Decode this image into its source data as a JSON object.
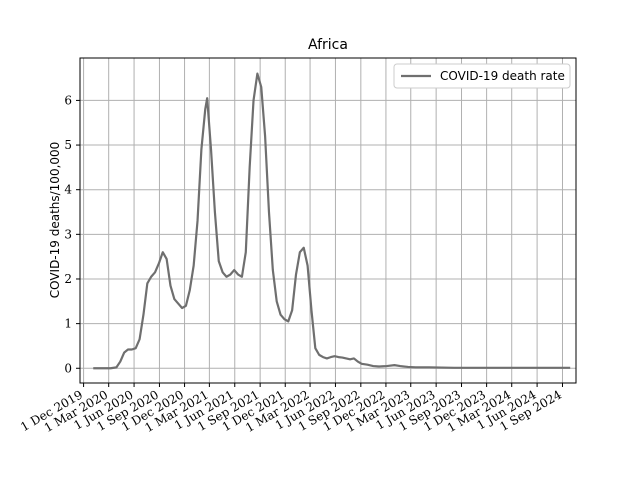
{
  "chart_data": {
    "type": "line",
    "title": "Africa",
    "xlabel": "",
    "ylabel": "COVID-19 deaths/100,000",
    "legend": {
      "placement": "top-right",
      "entries": [
        "COVID-19 death rate"
      ]
    },
    "grid": true,
    "xlim": [
      "2019-11-18",
      "2024-10-20"
    ],
    "ylim": [
      -0.33,
      6.95
    ],
    "x_tick_labels": [
      "1 Dec 2019",
      "1 Mar 2020",
      "1 Jun 2020",
      "1 Sep 2020",
      "1 Dec 2020",
      "1 Mar 2021",
      "1 Jun 2021",
      "1 Sep 2021",
      "1 Dec 2021",
      "1 Mar 2022",
      "1 Jun 2022",
      "1 Sep 2022",
      "1 Dec 2022",
      "1 Mar 2023",
      "1 Jun 2023",
      "1 Sep 2023",
      "1 Dec 2023",
      "1 Mar 2024",
      "1 Jun 2024",
      "1 Sep 2024"
    ],
    "x_tick_dates": [
      "2019-12-01",
      "2020-03-01",
      "2020-06-01",
      "2020-09-01",
      "2020-12-01",
      "2021-03-01",
      "2021-06-01",
      "2021-09-01",
      "2021-12-01",
      "2022-03-01",
      "2022-06-01",
      "2022-09-01",
      "2022-12-01",
      "2023-03-01",
      "2023-06-01",
      "2023-09-01",
      "2023-12-01",
      "2024-03-01",
      "2024-06-01",
      "2024-09-01"
    ],
    "y_ticks": [
      0,
      1,
      2,
      3,
      4,
      5,
      6
    ],
    "series": [
      {
        "name": "COVID-19 death rate",
        "color": "#6f6f6f",
        "points": [
          [
            "2020-01-05",
            0.0
          ],
          [
            "2020-03-08",
            0.0
          ],
          [
            "2020-03-29",
            0.02
          ],
          [
            "2020-04-12",
            0.15
          ],
          [
            "2020-04-26",
            0.35
          ],
          [
            "2020-05-10",
            0.42
          ],
          [
            "2020-05-24",
            0.42
          ],
          [
            "2020-06-07",
            0.45
          ],
          [
            "2020-06-21",
            0.65
          ],
          [
            "2020-07-05",
            1.2
          ],
          [
            "2020-07-19",
            1.9
          ],
          [
            "2020-08-02",
            2.05
          ],
          [
            "2020-08-16",
            2.15
          ],
          [
            "2020-08-30",
            2.35
          ],
          [
            "2020-09-13",
            2.6
          ],
          [
            "2020-09-27",
            2.45
          ],
          [
            "2020-10-11",
            1.85
          ],
          [
            "2020-10-25",
            1.55
          ],
          [
            "2020-11-08",
            1.45
          ],
          [
            "2020-11-22",
            1.35
          ],
          [
            "2020-12-06",
            1.4
          ],
          [
            "2020-12-20",
            1.75
          ],
          [
            "2021-01-03",
            2.3
          ],
          [
            "2021-01-17",
            3.3
          ],
          [
            "2021-01-31",
            4.9
          ],
          [
            "2021-02-14",
            5.8
          ],
          [
            "2021-02-21",
            6.05
          ],
          [
            "2021-03-07",
            4.9
          ],
          [
            "2021-03-21",
            3.5
          ],
          [
            "2021-04-04",
            2.4
          ],
          [
            "2021-04-18",
            2.15
          ],
          [
            "2021-05-02",
            2.05
          ],
          [
            "2021-05-16",
            2.1
          ],
          [
            "2021-05-30",
            2.2
          ],
          [
            "2021-06-13",
            2.1
          ],
          [
            "2021-06-27",
            2.05
          ],
          [
            "2021-07-11",
            2.6
          ],
          [
            "2021-07-25",
            4.5
          ],
          [
            "2021-08-08",
            6.0
          ],
          [
            "2021-08-22",
            6.6
          ],
          [
            "2021-09-05",
            6.3
          ],
          [
            "2021-09-19",
            5.2
          ],
          [
            "2021-10-03",
            3.5
          ],
          [
            "2021-10-17",
            2.2
          ],
          [
            "2021-10-31",
            1.5
          ],
          [
            "2021-11-14",
            1.2
          ],
          [
            "2021-11-28",
            1.1
          ],
          [
            "2021-12-12",
            1.05
          ],
          [
            "2021-12-26",
            1.3
          ],
          [
            "2022-01-09",
            2.1
          ],
          [
            "2022-01-23",
            2.6
          ],
          [
            "2022-02-06",
            2.7
          ],
          [
            "2022-02-20",
            2.3
          ],
          [
            "2022-03-06",
            1.3
          ],
          [
            "2022-03-20",
            0.45
          ],
          [
            "2022-04-03",
            0.3
          ],
          [
            "2022-04-17",
            0.25
          ],
          [
            "2022-05-01",
            0.22
          ],
          [
            "2022-05-15",
            0.25
          ],
          [
            "2022-05-29",
            0.27
          ],
          [
            "2022-06-12",
            0.25
          ],
          [
            "2022-06-26",
            0.24
          ],
          [
            "2022-07-10",
            0.22
          ],
          [
            "2022-07-24",
            0.2
          ],
          [
            "2022-08-07",
            0.22
          ],
          [
            "2022-08-21",
            0.15
          ],
          [
            "2022-09-04",
            0.1
          ],
          [
            "2022-09-25",
            0.08
          ],
          [
            "2022-10-16",
            0.05
          ],
          [
            "2022-11-06",
            0.04
          ],
          [
            "2022-12-04",
            0.05
          ],
          [
            "2023-01-01",
            0.07
          ],
          [
            "2023-01-22",
            0.05
          ],
          [
            "2023-02-19",
            0.03
          ],
          [
            "2023-03-19",
            0.02
          ],
          [
            "2023-05-07",
            0.02
          ],
          [
            "2023-08-06",
            0.01
          ],
          [
            "2023-11-05",
            0.01
          ],
          [
            "2024-02-04",
            0.01
          ],
          [
            "2024-05-05",
            0.01
          ],
          [
            "2024-09-29",
            0.01
          ]
        ]
      }
    ]
  }
}
